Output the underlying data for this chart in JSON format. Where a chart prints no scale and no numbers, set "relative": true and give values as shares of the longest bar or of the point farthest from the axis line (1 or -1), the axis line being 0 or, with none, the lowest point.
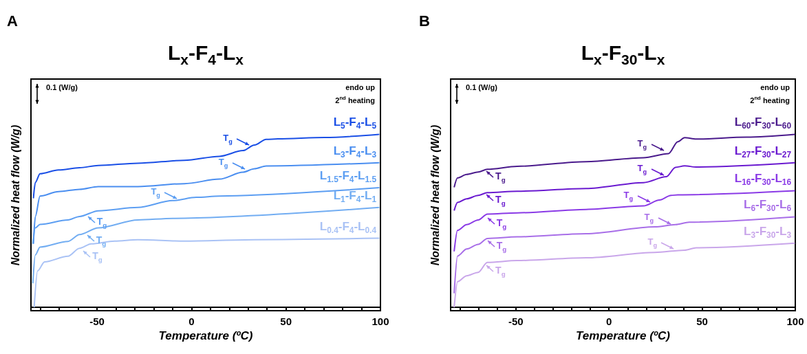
{
  "chart_data": [
    {
      "type": "line",
      "title": "L$_{x}$-F$_{4}$-L$_{x}$",
      "xlabel": "Temperature (ºC)",
      "ylabel": "Normalized heat flow (W/g)",
      "relative": true,
      "marker": "none",
      "xlim": [
        -85,
        100
      ],
      "xticks": [
        {
          "value": -80,
          "label": null
        },
        {
          "value": -70,
          "label": null
        },
        {
          "value": -60,
          "label": null
        },
        -50,
        {
          "value": -40,
          "label": null
        },
        {
          "value": -30,
          "label": null
        },
        {
          "value": -20,
          "label": null
        },
        {
          "value": -10,
          "label": null
        },
        0,
        {
          "value": 10,
          "label": null
        },
        {
          "value": 20,
          "label": null
        },
        {
          "value": 30,
          "label": null
        },
        {
          "value": 40,
          "label": null
        },
        50,
        {
          "value": 60,
          "label": null
        },
        {
          "value": 70,
          "label": null
        },
        {
          "value": 80,
          "label": null
        },
        {
          "value": 90,
          "label": null
        },
        100
      ],
      "series": [
        {
          "name": "L$_{5}$-F$_{4}$-L$_{5}$",
          "color": "#1a4fe6",
          "x": [
            -83.7,
            -82.7,
            -80.2,
            -70.4,
            -59.3,
            -49.4,
            -28.4,
            -3.7,
            14.8,
            27.2,
            33.3,
            39.5,
            45.7,
            70.4,
            99.4
          ],
          "values": [
            0.63,
            0.722,
            0.772,
            0.794,
            0.807,
            0.82,
            0.833,
            0.85,
            0.873,
            0.906,
            0.938,
            0.971,
            0.974,
            0.982,
            1
          ]
        },
        {
          "name": "L$_{3}$-F$_{4}$-L$_{3}$",
          "color": "#4a8ef0",
          "x": [
            -83.7,
            -82.7,
            -80.2,
            -70.4,
            -59.3,
            -49.4,
            -28.4,
            -3.7,
            14.8,
            27.2,
            33.3,
            39.5,
            99.4
          ],
          "values": [
            0.367,
            0.525,
            0.643,
            0.669,
            0.682,
            0.698,
            0.698,
            0.715,
            0.741,
            0.781,
            0.801,
            0.817,
            0.836
          ]
        },
        {
          "name": "L$_{1.5}$-F$_{4}$-L$_{1.5}$",
          "color": "#5c9ef2",
          "x": [
            -84,
            -82.7,
            -80.2,
            -65.4,
            -59.3,
            -49.4,
            -28.4,
            -9.9,
            2.5,
            14.8,
            99.4
          ],
          "values": [
            0.367,
            0.459,
            0.479,
            0.505,
            0.525,
            0.558,
            0.577,
            0.617,
            0.636,
            0.643,
            0.692
          ]
        },
        {
          "name": "L$_{1}$-F$_{4}$-L$_{1}$",
          "color": "#72adf2",
          "x": [
            -84,
            -82.7,
            -80.2,
            -65.4,
            -59.3,
            -49.4,
            -28.4,
            -9.9,
            99.4
          ],
          "values": [
            0.138,
            0.302,
            0.348,
            0.381,
            0.42,
            0.459,
            0.505,
            0.514,
            0.577
          ]
        },
        {
          "name": "L$_{0.4}$-F$_{4}$-L$_{0.4}$",
          "color": "#a9c2f5",
          "x": [
            -83.3,
            -81.5,
            -77.8,
            -65.4,
            -59.3,
            -53.1,
            -40.7,
            -28.4,
            -3.7,
            33.3,
            99.4
          ],
          "values": [
            0,
            0.21,
            0.262,
            0.295,
            0.341,
            0.367,
            0.383,
            0.391,
            0.383,
            0.391,
            0.399
          ]
        }
      ],
      "annotations": [
        "A",
        "0.1 (W/g)",
        "endo up",
        "2$^{nd}$ heating",
        {
          "text": "T$_{g}$",
          "x": 32,
          "y": 0.93
        },
        {
          "text": "T$_{g}$",
          "x": 29.6,
          "y": 0.79
        },
        {
          "text": "T$_{g}$",
          "x": -6.2,
          "y": 0.62
        },
        {
          "text": "T$_{g}$",
          "x": -55.6,
          "y": 0.53
        },
        {
          "text": "T$_{g}$",
          "x": -56,
          "y": 0.42
        },
        {
          "text": "T$_{g}$",
          "x": -58,
          "y": 0.33
        }
      ]
    },
    {
      "type": "line",
      "title": "L$_{x}$-F$_{30}$-L$_{x}$",
      "xlabel": "Temperature (ºC)",
      "ylabel": "Normalized heat flow (W/g)",
      "relative": true,
      "marker": "none",
      "xlim": [
        -85,
        100
      ],
      "xticks": [
        {
          "value": -80,
          "label": null
        },
        {
          "value": -70,
          "label": null
        },
        {
          "value": -60,
          "label": null
        },
        -50,
        {
          "value": -40,
          "label": null
        },
        {
          "value": -30,
          "label": null
        },
        {
          "value": -20,
          "label": null
        },
        {
          "value": -10,
          "label": null
        },
        0,
        {
          "value": 10,
          "label": null
        },
        {
          "value": 20,
          "label": null
        },
        {
          "value": 30,
          "label": null
        },
        {
          "value": 40,
          "label": null
        },
        50,
        {
          "value": 60,
          "label": null
        },
        {
          "value": 70,
          "label": null
        },
        {
          "value": 80,
          "label": null
        },
        {
          "value": 90,
          "label": null
        },
        100
      ],
      "series": [
        {
          "name": "L$_{60}$-F$_{30}$-L$_{60}$",
          "color": "#4a1a8c",
          "x": [
            -83.1,
            -81.3,
            -76.4,
            -70.2,
            -65.3,
            -49.3,
            -12.3,
            18.5,
            32,
            36.9,
            40.6,
            46.8,
            73.9,
            99.8
          ],
          "values": [
            0.694,
            0.748,
            0.768,
            0.782,
            0.798,
            0.815,
            0.842,
            0.865,
            0.889,
            0.957,
            0.981,
            0.973,
            0.984,
            1
          ]
        },
        {
          "name": "L$_{27}$-F$_{30}$-L$_{27}$",
          "color": "#6a1ad0",
          "x": [
            -83.1,
            -81.3,
            -76.4,
            -70.2,
            -65.3,
            -49.3,
            -12.3,
            18.5,
            30.8,
            35.7,
            40.6,
            46.8,
            99.8
          ],
          "values": [
            0.559,
            0.606,
            0.627,
            0.647,
            0.663,
            0.671,
            0.687,
            0.721,
            0.755,
            0.809,
            0.818,
            0.811,
            0.836
          ]
        },
        {
          "name": "L$_{16}$-F$_{30}$-L$_{16}$",
          "color": "#8a3ae6",
          "x": [
            -83.1,
            -81.3,
            -76.4,
            -70.2,
            -65.3,
            -49.3,
            -12.3,
            18.5,
            27.1,
            33.3,
            36.9,
            99.8
          ],
          "values": [
            0.323,
            0.445,
            0.478,
            0.505,
            0.539,
            0.546,
            0.566,
            0.586,
            0.62,
            0.647,
            0.65,
            0.674
          ]
        },
        {
          "name": "L$_{6}$-F$_{30}$-L$_{6}$",
          "color": "#a86ee8",
          "x": [
            -83.1,
            -81.3,
            -76.4,
            -70.2,
            -65.3,
            -49.3,
            -12.3,
            24.6,
            35.7,
            43.1,
            99.8
          ],
          "values": [
            0.081,
            0.296,
            0.337,
            0.364,
            0.398,
            0.407,
            0.425,
            0.465,
            0.478,
            0.492,
            0.523
          ]
        },
        {
          "name": "L$_{3}$-F$_{30}$-L$_{3}$",
          "color": "#c9a6ea",
          "x": [
            -83.1,
            -81.3,
            -76.4,
            -70.2,
            -65.3,
            -49.3,
            -12.3,
            24.6,
            40.6,
            46.8,
            99.8
          ],
          "values": [
            0,
            0.148,
            0.182,
            0.202,
            0.259,
            0.27,
            0.286,
            0.317,
            0.33,
            0.344,
            0.371
          ]
        }
      ],
      "annotations": [
        "B",
        "0.1 (W/g)",
        "endo up",
        "2$^{nd}$ heating",
        {
          "text": "T$_{g}$",
          "x": 30.8,
          "y": 0.9
        },
        {
          "text": "T$_{g}$",
          "x": -66.5,
          "y": 0.79
        },
        {
          "text": "T$_{g}$",
          "x": 30.8,
          "y": 0.755
        },
        {
          "text": "T$_{g}$",
          "x": -66.5,
          "y": 0.655
        },
        {
          "text": "T$_{g}$",
          "x": 23.4,
          "y": 0.6
        },
        {
          "text": "T$_{g}$",
          "x": -65.9,
          "y": 0.52
        },
        {
          "text": "T$_{g}$",
          "x": 34.5,
          "y": 0.475
        },
        {
          "text": "T$_{g}$",
          "x": -65.9,
          "y": 0.39
        },
        {
          "text": "T$_{g}$",
          "x": 36.3,
          "y": 0.33
        },
        {
          "text": "T$_{g}$",
          "x": -66.5,
          "y": 0.245
        }
      ]
    }
  ]
}
